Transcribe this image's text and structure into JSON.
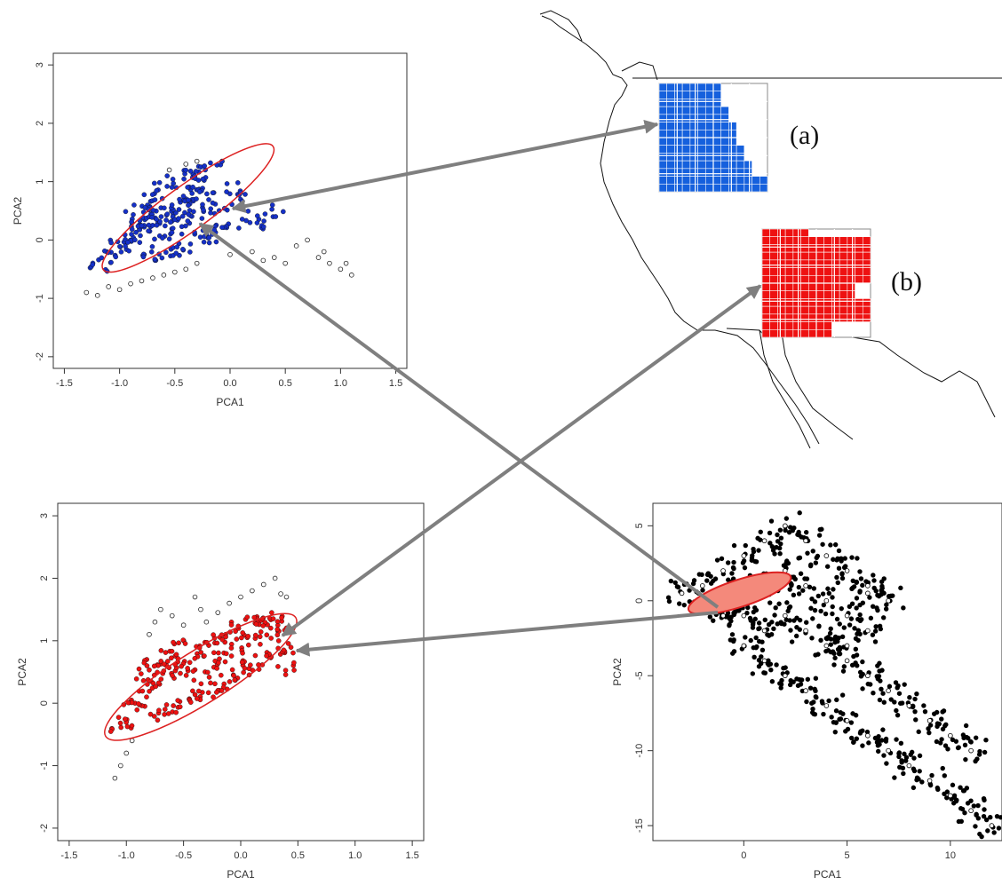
{
  "panel_labels": {
    "a": "(a)",
    "b": "(b)"
  },
  "colors": {
    "blue": "#1530c8",
    "red": "#ee1111",
    "ellipse": "#dd2222",
    "arrow": "#7f7f7f",
    "fill_pink": "#f4897b",
    "grid_blue": "#1560dd"
  },
  "chart_data": [
    {
      "type": "scatter",
      "id": "blue-panel",
      "xlabel": "PCA1",
      "ylabel": "PCA2",
      "xlim": [
        -1.6,
        1.6
      ],
      "ylim": [
        -2.2,
        3.2
      ],
      "xticks": [
        "-1.5",
        "-1.0",
        "-0.5",
        "0.0",
        "0.5",
        "1.0",
        "1.5"
      ],
      "yticks": [
        "-2",
        "-1",
        "0",
        "1",
        "2",
        "3"
      ],
      "ellipse": {
        "center": [
          -0.38,
          0.55
        ],
        "semi_major": 0.95,
        "semi_minor": 0.38,
        "angle_deg": 36
      },
      "highlight_color": "blue",
      "points": [
        [
          -0.6,
          0.4
        ],
        [
          -0.7,
          0.3
        ],
        [
          -0.5,
          0.5
        ],
        [
          -0.8,
          0.2
        ],
        [
          -0.4,
          0.6
        ],
        [
          -0.9,
          0.0
        ],
        [
          -1.0,
          -0.1
        ],
        [
          -0.3,
          0.8
        ],
        [
          -0.2,
          0.9
        ],
        [
          -0.5,
          1.0
        ],
        [
          -0.6,
          0.9
        ],
        [
          -0.7,
          0.7
        ],
        [
          -0.4,
          1.1
        ],
        [
          -0.3,
          1.2
        ],
        [
          -1.1,
          -0.3
        ],
        [
          -1.2,
          -0.5
        ],
        [
          -0.6,
          0.1
        ],
        [
          -0.5,
          0.2
        ],
        [
          -0.4,
          0.3
        ],
        [
          -0.3,
          0.4
        ],
        [
          -0.2,
          0.6
        ],
        [
          -0.1,
          0.5
        ],
        [
          0.1,
          0.7
        ],
        [
          0.2,
          0.4
        ],
        [
          0.3,
          0.3
        ],
        [
          0.4,
          0.5
        ],
        [
          -0.8,
          0.5
        ],
        [
          -0.9,
          0.4
        ],
        [
          -0.7,
          -0.2
        ],
        [
          -0.6,
          -0.3
        ],
        [
          -0.5,
          -0.2
        ],
        [
          -0.4,
          -0.1
        ],
        [
          -0.3,
          0.1
        ],
        [
          -0.2,
          0.2
        ],
        [
          -0.7,
          0.5
        ],
        [
          -0.65,
          0.35
        ],
        [
          -0.55,
          0.45
        ],
        [
          -0.75,
          0.25
        ],
        [
          -0.45,
          0.65
        ],
        [
          -0.35,
          0.75
        ],
        [
          -0.85,
          0.15
        ],
        [
          -0.95,
          -0.05
        ],
        [
          0.0,
          0.3
        ],
        [
          -0.15,
          0.05
        ],
        [
          -1.05,
          -0.2
        ],
        [
          -0.25,
          1.0
        ],
        [
          -0.15,
          1.25
        ],
        [
          0.05,
          0.9
        ]
      ],
      "outliers": [
        [
          -1.3,
          -0.9
        ],
        [
          -1.2,
          -0.95
        ],
        [
          -1.1,
          -0.8
        ],
        [
          -1.0,
          -0.85
        ],
        [
          -0.9,
          -0.75
        ],
        [
          -0.8,
          -0.7
        ],
        [
          -0.7,
          -0.65
        ],
        [
          -0.6,
          -0.6
        ],
        [
          -0.5,
          -0.55
        ],
        [
          -0.4,
          -0.5
        ],
        [
          -0.3,
          -0.4
        ],
        [
          0.0,
          -0.25
        ],
        [
          0.2,
          -0.2
        ],
        [
          0.3,
          -0.35
        ],
        [
          0.4,
          -0.3
        ],
        [
          0.5,
          -0.4
        ],
        [
          0.6,
          -0.1
        ],
        [
          0.7,
          0.0
        ],
        [
          0.8,
          -0.3
        ],
        [
          0.9,
          -0.4
        ],
        [
          1.0,
          -0.5
        ],
        [
          1.1,
          -0.6
        ],
        [
          1.05,
          -0.4
        ],
        [
          0.85,
          -0.2
        ],
        [
          -0.4,
          1.3
        ],
        [
          -0.3,
          1.35
        ],
        [
          -0.55,
          1.2
        ]
      ]
    },
    {
      "type": "scatter",
      "id": "red-panel",
      "xlabel": "PCA1",
      "ylabel": "PCA2",
      "xlim": [
        -1.6,
        1.6
      ],
      "ylim": [
        -2.2,
        3.2
      ],
      "xticks": [
        "-1.5",
        "-1.0",
        "-0.5",
        "0.0",
        "0.5",
        "1.0",
        "1.5"
      ],
      "yticks": [
        "-2",
        "-1",
        "0",
        "1",
        "2",
        "3"
      ],
      "ellipse": {
        "center": [
          -0.35,
          0.42
        ],
        "semi_major": 0.98,
        "semi_minor": 0.42,
        "angle_deg": 32
      },
      "highlight_color": "red",
      "points": [
        [
          -1.0,
          -0.3
        ],
        [
          -0.9,
          0.0
        ],
        [
          -0.8,
          0.2
        ],
        [
          -0.7,
          0.4
        ],
        [
          -0.6,
          0.5
        ],
        [
          -0.5,
          0.6
        ],
        [
          -0.4,
          0.8
        ],
        [
          -0.3,
          0.9
        ],
        [
          -0.2,
          1.0
        ],
        [
          -0.1,
          1.1
        ],
        [
          0.0,
          1.2
        ],
        [
          0.1,
          1.3
        ],
        [
          0.2,
          1.35
        ],
        [
          0.3,
          1.4
        ],
        [
          0.35,
          1.2
        ],
        [
          0.4,
          0.9
        ],
        [
          0.3,
          0.8
        ],
        [
          0.2,
          0.7
        ],
        [
          0.1,
          0.6
        ],
        [
          0.0,
          0.5
        ],
        [
          -0.1,
          0.4
        ],
        [
          -0.2,
          0.3
        ],
        [
          -0.3,
          0.2
        ],
        [
          -0.4,
          0.1
        ],
        [
          -0.5,
          0.0
        ],
        [
          -0.6,
          -0.1
        ],
        [
          -0.7,
          -0.2
        ],
        [
          -0.85,
          0.3
        ],
        [
          -0.75,
          0.6
        ],
        [
          -0.65,
          0.8
        ],
        [
          -0.55,
          0.95
        ],
        [
          -0.45,
          0.5
        ],
        [
          -0.25,
          0.65
        ],
        [
          -0.15,
          0.85
        ],
        [
          0.05,
          0.95
        ],
        [
          0.15,
          1.05
        ],
        [
          0.25,
          1.15
        ],
        [
          -0.95,
          -0.1
        ],
        [
          -1.05,
          -0.35
        ],
        [
          0.38,
          0.55
        ],
        [
          -0.8,
          0.55
        ],
        [
          -0.6,
          0.7
        ],
        [
          -0.35,
          0.4
        ],
        [
          -0.05,
          0.75
        ],
        [
          0.22,
          1.25
        ]
      ],
      "outliers": [
        [
          -1.1,
          -1.2
        ],
        [
          -1.05,
          -1.0
        ],
        [
          -1.0,
          -0.8
        ],
        [
          -0.95,
          -0.6
        ],
        [
          -0.7,
          1.5
        ],
        [
          -0.75,
          1.3
        ],
        [
          -0.8,
          1.1
        ],
        [
          -0.6,
          1.4
        ],
        [
          -0.4,
          1.7
        ],
        [
          -0.35,
          1.5
        ],
        [
          -0.3,
          1.3
        ],
        [
          -0.1,
          1.6
        ],
        [
          0.0,
          1.7
        ],
        [
          0.1,
          1.8
        ],
        [
          0.2,
          1.9
        ],
        [
          0.3,
          2.0
        ],
        [
          0.35,
          1.75
        ],
        [
          0.4,
          1.7
        ],
        [
          -0.5,
          1.25
        ],
        [
          -0.2,
          1.45
        ]
      ]
    },
    {
      "type": "scatter",
      "id": "black-panel",
      "xlabel": "PCA1",
      "ylabel": "PCA2",
      "xlim": [
        -4.4,
        12.5
      ],
      "ylim": [
        -16,
        6.5
      ],
      "xticks": [
        "0",
        "5",
        "10"
      ],
      "yticks": [
        "-15",
        "-10",
        "-5",
        "0",
        "5"
      ],
      "ellipse": {
        "center": [
          -0.2,
          0.5
        ],
        "semi_major": 2.6,
        "semi_minor": 0.9,
        "angle_deg": 18
      },
      "highlight_color": "fill_pink",
      "points": [],
      "outliers": [
        [
          -3,
          0.5
        ],
        [
          -2,
          1
        ],
        [
          -1,
          2
        ],
        [
          0,
          3
        ],
        [
          1,
          4
        ],
        [
          2,
          5
        ],
        [
          3,
          4
        ],
        [
          4,
          3
        ],
        [
          5,
          2
        ],
        [
          6,
          1
        ],
        [
          7,
          0
        ],
        [
          6,
          -2
        ],
        [
          5,
          -4
        ],
        [
          4,
          -3
        ],
        [
          3,
          -2
        ],
        [
          2,
          -1
        ],
        [
          1,
          -2
        ],
        [
          0,
          -1
        ],
        [
          -1,
          0
        ],
        [
          0,
          -3
        ],
        [
          1,
          -4
        ],
        [
          2,
          -5
        ],
        [
          3,
          -6
        ],
        [
          4,
          -7
        ],
        [
          5,
          -8
        ],
        [
          6,
          -9
        ],
        [
          7,
          -10
        ],
        [
          8,
          -11
        ],
        [
          9,
          -12
        ],
        [
          10,
          -13
        ],
        [
          11,
          -14
        ],
        [
          12,
          -15
        ],
        [
          8,
          -7
        ],
        [
          9,
          -8
        ],
        [
          10,
          -9
        ],
        [
          11,
          -10
        ],
        [
          6,
          -5
        ],
        [
          7,
          -6
        ],
        [
          5,
          -1
        ],
        [
          6,
          0.5
        ],
        [
          3,
          1
        ],
        [
          2,
          2
        ],
        [
          1,
          1
        ],
        [
          0,
          0
        ],
        [
          -1,
          -1
        ],
        [
          4,
          0
        ],
        [
          5,
          -3
        ]
      ]
    }
  ]
}
